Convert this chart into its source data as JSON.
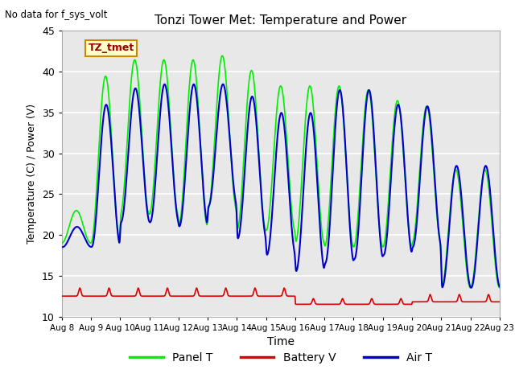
{
  "title": "Tonzi Tower Met: Temperature and Power",
  "top_left_text": "No data for f_sys_volt",
  "xlabel": "Time",
  "ylabel": "Temperature (C) / Power (V)",
  "ylim": [
    10,
    45
  ],
  "yticks": [
    10,
    15,
    20,
    25,
    30,
    35,
    40,
    45
  ],
  "x_tick_days": [
    8,
    9,
    10,
    11,
    12,
    13,
    14,
    15,
    16,
    17,
    18,
    19,
    20,
    21,
    22,
    23
  ],
  "x_tick_labels": [
    "Aug 8",
    "Aug 9",
    "Aug 10",
    "Aug 11",
    "Aug 12",
    "Aug 13",
    "Aug 14",
    "Aug 15",
    "Aug 16",
    "Aug 17",
    "Aug 18",
    "Aug 19",
    "Aug 20",
    "Aug 21",
    "Aug 22",
    "Aug 23"
  ],
  "annotation_box_text": "TZ_tmet",
  "annotation_box_color": "#ffffcc",
  "annotation_box_edge": "#cc8800",
  "panel_color": "#00ee00",
  "battery_color": "#dd0000",
  "air_color": "#0000cc",
  "legend_labels": [
    "Panel T",
    "Battery V",
    "Air T"
  ],
  "plot_bg_color": "#e8e8e8",
  "grid_color": "#ffffff",
  "figsize": [
    6.4,
    4.8
  ],
  "dpi": 100
}
